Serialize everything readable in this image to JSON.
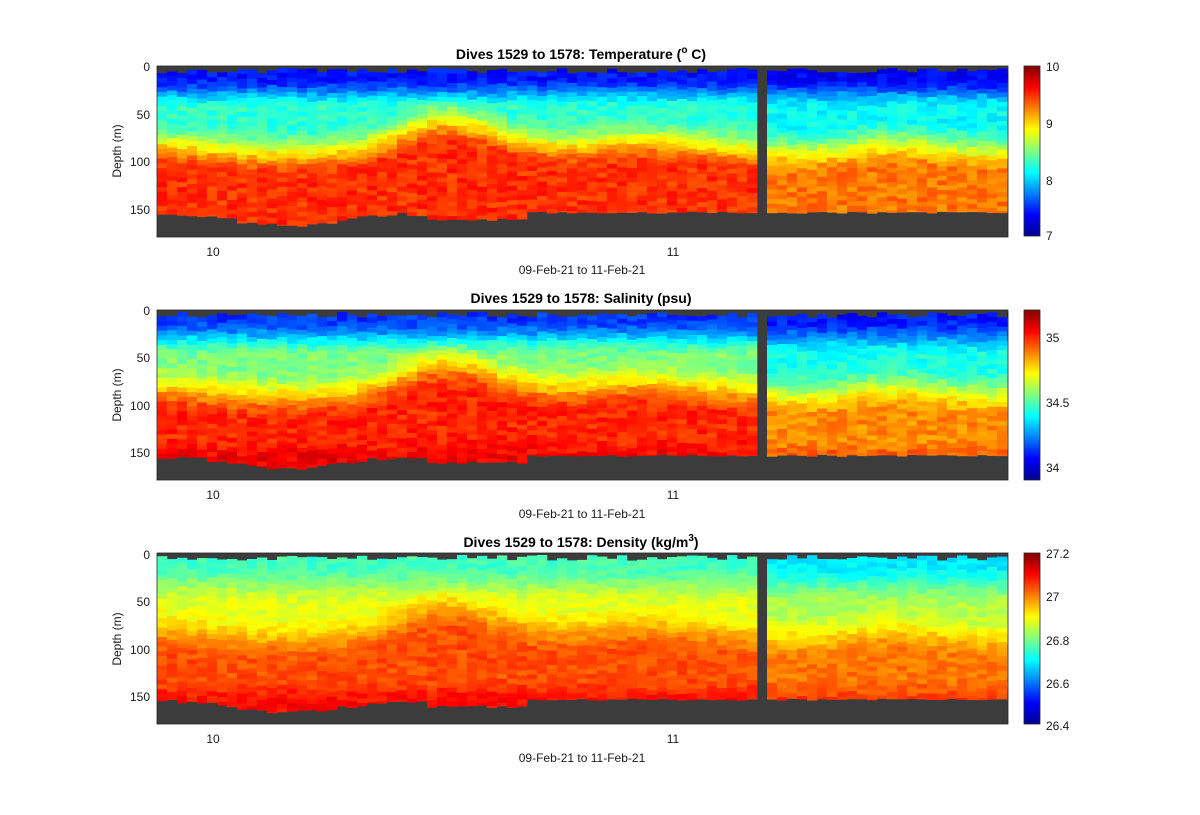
{
  "chart_data": [
    {
      "type": "heatmap",
      "title_main": "Dives 1529 to 1578: Temperature (",
      "title_sup": "o",
      "title_end": " C)",
      "xlabel": "09-Feb-21 to 11-Feb-21",
      "ylabel": "Depth (m)",
      "yticks": [
        "0",
        "50",
        "100",
        "150"
      ],
      "xticks": [
        "10",
        "11"
      ],
      "colorbar": {
        "ticks": [
          "7",
          "8",
          "9",
          "10"
        ],
        "clim": [
          7,
          10
        ]
      },
      "colormap": "jet",
      "background_color": "#3c3c3c"
    },
    {
      "type": "heatmap",
      "title_main": "Dives 1529 to 1578: Salinity (psu)",
      "title_sup": "",
      "title_end": "",
      "xlabel": "09-Feb-21 to 11-Feb-21",
      "ylabel": "Depth (m)",
      "yticks": [
        "0",
        "50",
        "100",
        "150"
      ],
      "xticks": [
        "10",
        "11"
      ],
      "colorbar": {
        "ticks": [
          "34",
          "34.5",
          "35"
        ],
        "clim": [
          33.9,
          35.2
        ]
      },
      "colormap": "jet",
      "background_color": "#3c3c3c"
    },
    {
      "type": "heatmap",
      "title_main": "Dives 1529 to 1578: Density (kg/m",
      "title_sup": "3",
      "title_end": ")",
      "xlabel": "09-Feb-21 to 11-Feb-21",
      "ylabel": "Depth (m)",
      "yticks": [
        "0",
        "50",
        "100",
        "150"
      ],
      "xticks": [
        "10",
        "11"
      ],
      "colorbar": {
        "ticks": [
          "26.4",
          "26.6",
          "26.8",
          "27",
          "27.2"
        ],
        "clim": [
          26.4,
          27.2
        ]
      },
      "colormap": "jet",
      "background_color": "#3c3c3c"
    }
  ]
}
